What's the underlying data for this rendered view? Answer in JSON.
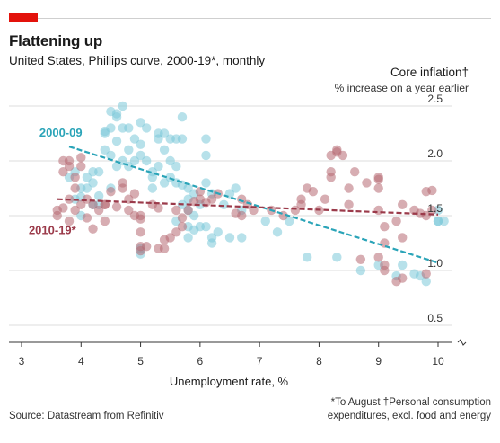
{
  "header": {
    "title": "Flattening up",
    "subtitle": "United States, Phillips curve, 2000-19*, monthly",
    "unit_title": "Core inflation†",
    "unit_sub": "% increase on a year earlier"
  },
  "footer": {
    "source": "Source: Datastream from Refinitiv",
    "note1": "*To August  †Personal consumption",
    "note2": "expenditures, excl. food and energy"
  },
  "colors": {
    "series_2000_09": "#2aa4b8",
    "series_2010_19": "#9b3a4a",
    "dots_2000_09": "#7cc8d8",
    "dots_2010_19": "#b66a73",
    "grid": "#dddddd",
    "axis": "#333333"
  },
  "chart_data": {
    "type": "scatter",
    "xlabel": "Unemployment rate, %",
    "ylabel": "Core inflation†",
    "xlim": [
      3,
      10
    ],
    "ylim": [
      0.5,
      2.5
    ],
    "x_ticks": [
      "3",
      "4",
      "5",
      "6",
      "7",
      "8",
      "9",
      "10"
    ],
    "y_ticks": [
      "0.5",
      "1.0",
      "1.5",
      "2.0",
      "2.5"
    ],
    "grid": "horizontal",
    "series": [
      {
        "name": "2000-09",
        "label_x": 3.3,
        "label_y": 2.22,
        "points": [
          [
            3.8,
            1.85
          ],
          [
            3.9,
            1.9
          ],
          [
            4.0,
            1.5
          ],
          [
            4.0,
            1.67
          ],
          [
            4.1,
            1.75
          ],
          [
            4.1,
            1.85
          ],
          [
            4.2,
            1.8
          ],
          [
            4.2,
            1.6
          ],
          [
            4.2,
            1.9
          ],
          [
            4.3,
            1.68
          ],
          [
            4.3,
            1.9
          ],
          [
            4.4,
            2.1
          ],
          [
            4.4,
            2.27
          ],
          [
            4.4,
            2.25
          ],
          [
            4.5,
            2.45
          ],
          [
            4.5,
            2.3
          ],
          [
            4.5,
            2.05
          ],
          [
            4.6,
            2.43
          ],
          [
            4.6,
            2.4
          ],
          [
            4.6,
            2.18
          ],
          [
            4.6,
            1.95
          ],
          [
            4.7,
            2.5
          ],
          [
            4.7,
            2.3
          ],
          [
            4.7,
            2.0
          ],
          [
            4.8,
            2.3
          ],
          [
            4.8,
            2.1
          ],
          [
            4.8,
            1.95
          ],
          [
            4.9,
            2.2
          ],
          [
            4.9,
            2.0
          ],
          [
            5.0,
            2.35
          ],
          [
            5.0,
            2.15
          ],
          [
            5.0,
            2.05
          ],
          [
            5.1,
            2.3
          ],
          [
            5.1,
            2.0
          ],
          [
            5.0,
            1.15
          ],
          [
            5.0,
            1.2
          ],
          [
            5.2,
            1.9
          ],
          [
            5.2,
            1.85
          ],
          [
            5.3,
            2.25
          ],
          [
            5.3,
            2.2
          ],
          [
            5.3,
            1.95
          ],
          [
            5.4,
            2.25
          ],
          [
            5.4,
            2.1
          ],
          [
            5.4,
            1.8
          ],
          [
            5.5,
            2.2
          ],
          [
            5.5,
            2.0
          ],
          [
            5.5,
            1.85
          ],
          [
            5.6,
            2.2
          ],
          [
            5.6,
            1.95
          ],
          [
            5.6,
            1.8
          ],
          [
            5.7,
            2.2
          ],
          [
            5.7,
            1.78
          ],
          [
            5.7,
            1.6
          ],
          [
            5.7,
            2.4
          ],
          [
            5.8,
            1.75
          ],
          [
            5.8,
            1.65
          ],
          [
            5.8,
            1.55
          ],
          [
            5.8,
            1.4
          ],
          [
            5.9,
            1.7
          ],
          [
            5.9,
            1.5
          ],
          [
            5.9,
            1.37
          ],
          [
            6.0,
            1.4
          ],
          [
            6.0,
            1.6
          ],
          [
            6.1,
            1.8
          ],
          [
            6.1,
            2.05
          ],
          [
            6.1,
            2.2
          ],
          [
            6.1,
            1.4
          ],
          [
            6.2,
            1.3
          ],
          [
            6.2,
            1.25
          ],
          [
            6.2,
            1.7
          ],
          [
            6.3,
            1.35
          ],
          [
            6.4,
            1.6
          ],
          [
            6.5,
            1.7
          ],
          [
            6.6,
            1.75
          ],
          [
            6.7,
            1.55
          ],
          [
            6.7,
            1.3
          ],
          [
            7.1,
            1.45
          ],
          [
            7.3,
            1.35
          ],
          [
            7.5,
            1.45
          ],
          [
            7.8,
            1.12
          ],
          [
            8.3,
            1.12
          ],
          [
            8.7,
            1.0
          ],
          [
            9.0,
            1.05
          ],
          [
            9.3,
            0.95
          ],
          [
            9.4,
            1.05
          ],
          [
            9.6,
            0.97
          ],
          [
            9.7,
            0.95
          ],
          [
            9.8,
            0.9
          ],
          [
            10.0,
            1.55
          ],
          [
            10.0,
            1.45
          ],
          [
            10.0,
            1.45
          ],
          [
            10.1,
            1.45
          ],
          [
            4.0,
            1.75
          ],
          [
            3.9,
            1.65
          ],
          [
            5.2,
            1.75
          ],
          [
            5.6,
            1.45
          ],
          [
            5.8,
            1.3
          ],
          [
            6.5,
            1.3
          ],
          [
            4.3,
            1.6
          ],
          [
            4.5,
            1.75
          ]
        ],
        "trend": [
          [
            3.8,
            2.13
          ],
          [
            10.0,
            1.07
          ]
        ]
      },
      {
        "name": "2010-19*",
        "label_x": 3.12,
        "label_y": 1.33,
        "points": [
          [
            3.6,
            1.5
          ],
          [
            3.7,
            1.57
          ],
          [
            3.8,
            1.65
          ],
          [
            3.7,
            1.9
          ],
          [
            3.7,
            2.0
          ],
          [
            3.8,
            1.95
          ],
          [
            3.8,
            2.0
          ],
          [
            3.8,
            1.45
          ],
          [
            3.9,
            1.85
          ],
          [
            3.9,
            1.75
          ],
          [
            3.9,
            1.55
          ],
          [
            4.0,
            2.03
          ],
          [
            4.0,
            1.95
          ],
          [
            4.0,
            1.6
          ],
          [
            4.1,
            1.65
          ],
          [
            4.1,
            1.48
          ],
          [
            4.2,
            1.6
          ],
          [
            4.3,
            1.55
          ],
          [
            4.4,
            1.6
          ],
          [
            4.4,
            1.45
          ],
          [
            4.4,
            1.6
          ],
          [
            4.6,
            1.58
          ],
          [
            4.7,
            1.8
          ],
          [
            4.7,
            1.75
          ],
          [
            4.8,
            1.65
          ],
          [
            4.8,
            1.55
          ],
          [
            4.9,
            1.5
          ],
          [
            4.9,
            1.7
          ],
          [
            5.0,
            1.5
          ],
          [
            5.0,
            1.47
          ],
          [
            5.0,
            1.35
          ],
          [
            5.0,
            1.22
          ],
          [
            5.0,
            1.18
          ],
          [
            5.1,
            1.22
          ],
          [
            5.2,
            1.6
          ],
          [
            5.3,
            1.2
          ],
          [
            5.3,
            1.57
          ],
          [
            5.4,
            1.2
          ],
          [
            5.4,
            1.28
          ],
          [
            5.5,
            1.3
          ],
          [
            5.6,
            1.35
          ],
          [
            5.7,
            1.4
          ],
          [
            5.7,
            1.48
          ],
          [
            5.8,
            1.55
          ],
          [
            5.9,
            1.63
          ],
          [
            6.0,
            1.65
          ],
          [
            6.0,
            1.72
          ],
          [
            6.1,
            1.62
          ],
          [
            6.2,
            1.65
          ],
          [
            6.3,
            1.7
          ],
          [
            6.6,
            1.52
          ],
          [
            6.7,
            1.5
          ],
          [
            6.8,
            1.6
          ],
          [
            6.9,
            1.55
          ],
          [
            7.2,
            1.55
          ],
          [
            7.4,
            1.5
          ],
          [
            7.6,
            1.55
          ],
          [
            7.7,
            1.6
          ],
          [
            7.7,
            1.65
          ],
          [
            7.8,
            1.75
          ],
          [
            7.9,
            1.72
          ],
          [
            8.0,
            1.55
          ],
          [
            8.1,
            1.65
          ],
          [
            8.2,
            1.85
          ],
          [
            8.2,
            1.9
          ],
          [
            8.3,
            2.08
          ],
          [
            8.3,
            2.1
          ],
          [
            8.2,
            2.05
          ],
          [
            8.4,
            2.05
          ],
          [
            8.5,
            1.75
          ],
          [
            8.5,
            1.6
          ],
          [
            8.6,
            1.9
          ],
          [
            8.8,
            1.8
          ],
          [
            9.0,
            1.85
          ],
          [
            9.0,
            1.83
          ],
          [
            9.0,
            1.75
          ],
          [
            9.0,
            1.55
          ],
          [
            9.0,
            1.12
          ],
          [
            9.1,
            1.0
          ],
          [
            9.1,
            1.05
          ],
          [
            9.1,
            1.4
          ],
          [
            9.3,
            1.45
          ],
          [
            9.4,
            1.6
          ],
          [
            9.6,
            1.55
          ],
          [
            9.7,
            1.52
          ],
          [
            9.8,
            1.5
          ],
          [
            9.8,
            1.72
          ],
          [
            9.9,
            1.73
          ],
          [
            9.9,
            1.55
          ],
          [
            8.7,
            1.1
          ],
          [
            9.3,
            0.9
          ],
          [
            9.4,
            0.93
          ],
          [
            9.8,
            0.97
          ],
          [
            4.5,
            1.72
          ],
          [
            3.6,
            1.55
          ],
          [
            5.6,
            1.55
          ],
          [
            6.7,
            1.65
          ],
          [
            9.4,
            1.3
          ],
          [
            9.1,
            1.25
          ],
          [
            4.2,
            1.38
          ]
        ],
        "trend": [
          [
            3.6,
            1.65
          ],
          [
            10.0,
            1.51
          ]
        ]
      }
    ]
  }
}
